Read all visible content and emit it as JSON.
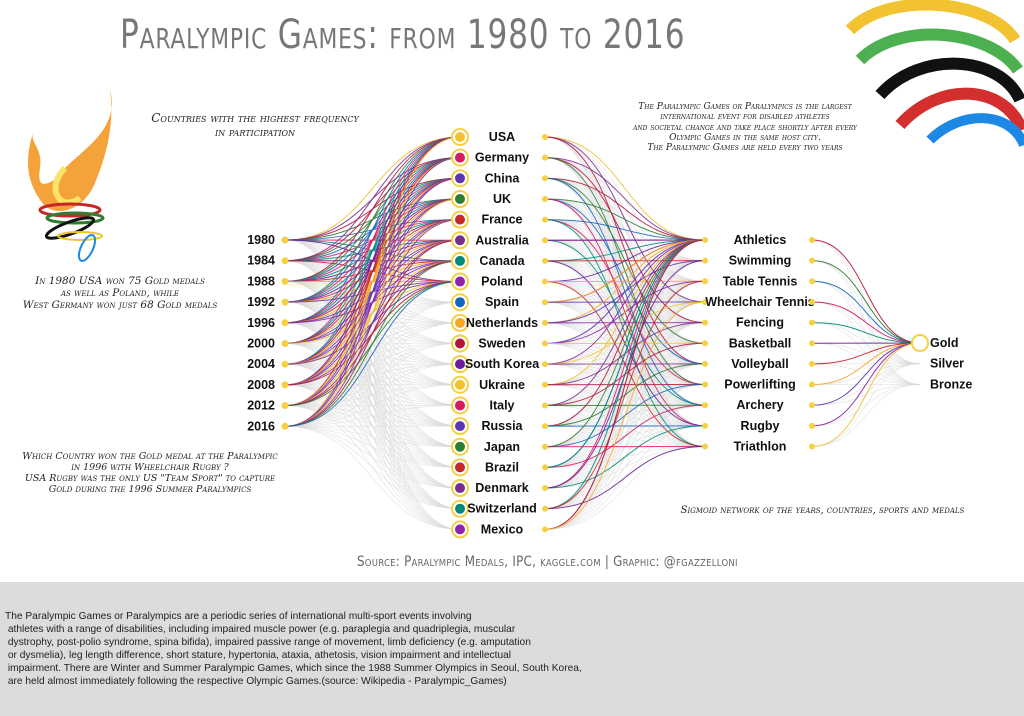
{
  "title": "Paralympic Games: from 1980 to 2016",
  "annotations": {
    "countries_heading": "Countries with the highest frequency\nin participation",
    "intro_note": "The Paralympic Games or Paralympics is the largest\ninternational event for disabled athletes\nand societal change and take place shortly after every\nOlympic Games in the same host city.\nThe Paralympic Games are held every two years",
    "usa_1980_note": "In 1980 USA won 75 Gold medals\nas well as Poland, while\nWest Germany won just 68 Gold medals",
    "rugby_note": "Which Country won the Gold medal at the Paralympic\nin 1996 with Wheelchair Rugby ?\nUSA Rugby was the only US \"Team Sport\" to capture\nGold during the 1996 Summer Paralympics",
    "network_caption": "Sigmoid network of the years, countries, sports and medals"
  },
  "years": [
    "1980",
    "1984",
    "1988",
    "1992",
    "1996",
    "2000",
    "2004",
    "2008",
    "2012",
    "2016"
  ],
  "countries": [
    "USA",
    "Germany",
    "China",
    "UK",
    "France",
    "Australia",
    "Canada",
    "Poland",
    "Spain",
    "Netherlands",
    "Sweden",
    "South Korea",
    "Ukraine",
    "Italy",
    "Russia",
    "Japan",
    "Brazil",
    "Denmark",
    "Switzerland",
    "Mexico"
  ],
  "sports": [
    "Athletics",
    "Swimming",
    "Table Tennis",
    "Wheelchair Tennis",
    "Fencing",
    "Basketball",
    "Volleyball",
    "Powerlifting",
    "Archery",
    "Rugby",
    "Triathlon"
  ],
  "medals": [
    "Gold",
    "Silver",
    "Bronze"
  ],
  "colors": {
    "node": "#f5d142",
    "link_gray": "#d9d9d9",
    "palette": [
      "#f2c230",
      "#7b2d8e",
      "#b3133b",
      "#2e7d32",
      "#1565c0",
      "#d81b60",
      "#00897b",
      "#6a1b9a",
      "#c62828",
      "#f9a825",
      "#5e35b1",
      "#8e24aa"
    ]
  },
  "source": "Source: Paralympic Medals, IPC, kaggle.com | Graphic: @fgazzelloni",
  "footer_text": "The Paralympic Games or Paralympics are a periodic series of international multi-sport events involving\n athletes with a range of disabilities, including impaired muscle power (e.g. paraplegia and quadriplegia, muscular\n dystrophy, post-polio syndrome, spina bifida), impaired passive range of movement, limb deficiency (e.g. amputation\n or dysmelia), leg length difference, short stature, hypertonia, ataxia, athetosis, vision impairment and intellectual\n impairment. There are Winter and Summer Paralympic Games, which since the 1988 Summer Olympics in Seoul, South Korea,\n are held almost immediately following the respective Olympic Games.(source: Wikipedia - Paralympic_Games)"
}
